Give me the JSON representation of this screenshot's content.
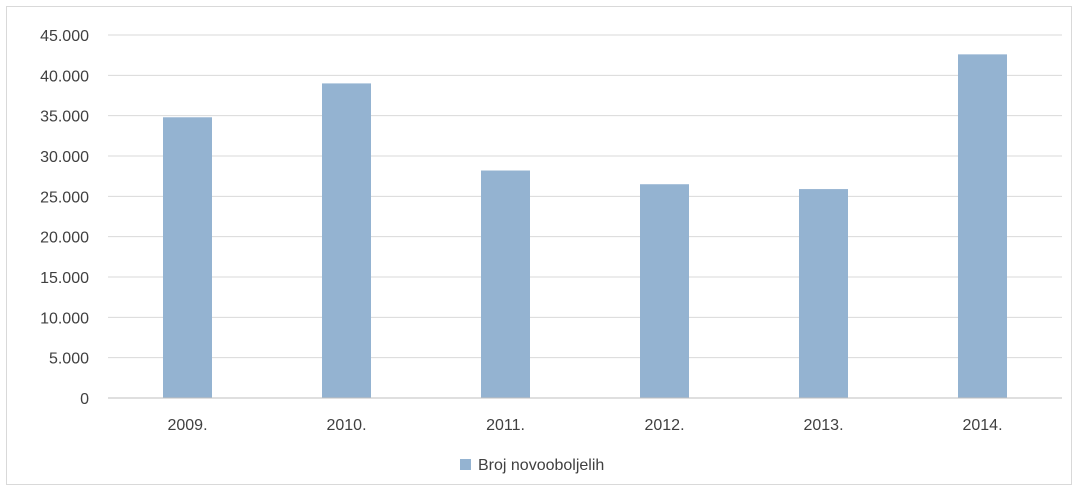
{
  "chart_data": {
    "type": "bar",
    "categories": [
      "2009.",
      "2010.",
      "2011.",
      "2012.",
      "2013.",
      "2014."
    ],
    "series": [
      {
        "name": "Broj novooboljelih",
        "values": [
          34800,
          39000,
          28200,
          26500,
          25900,
          42600
        ]
      }
    ],
    "yticks": [
      "0",
      "5.000",
      "10.000",
      "15.000",
      "20.000",
      "25.000",
      "30.000",
      "35.000",
      "40.000",
      "45.000"
    ],
    "ylim": [
      0,
      45000
    ],
    "grid": true,
    "legend_position": "bottom",
    "colors": {
      "bar": "#94b3d1",
      "grid": "#d9d9d9",
      "axis": "#bfbfbf",
      "text": "#404040"
    }
  }
}
